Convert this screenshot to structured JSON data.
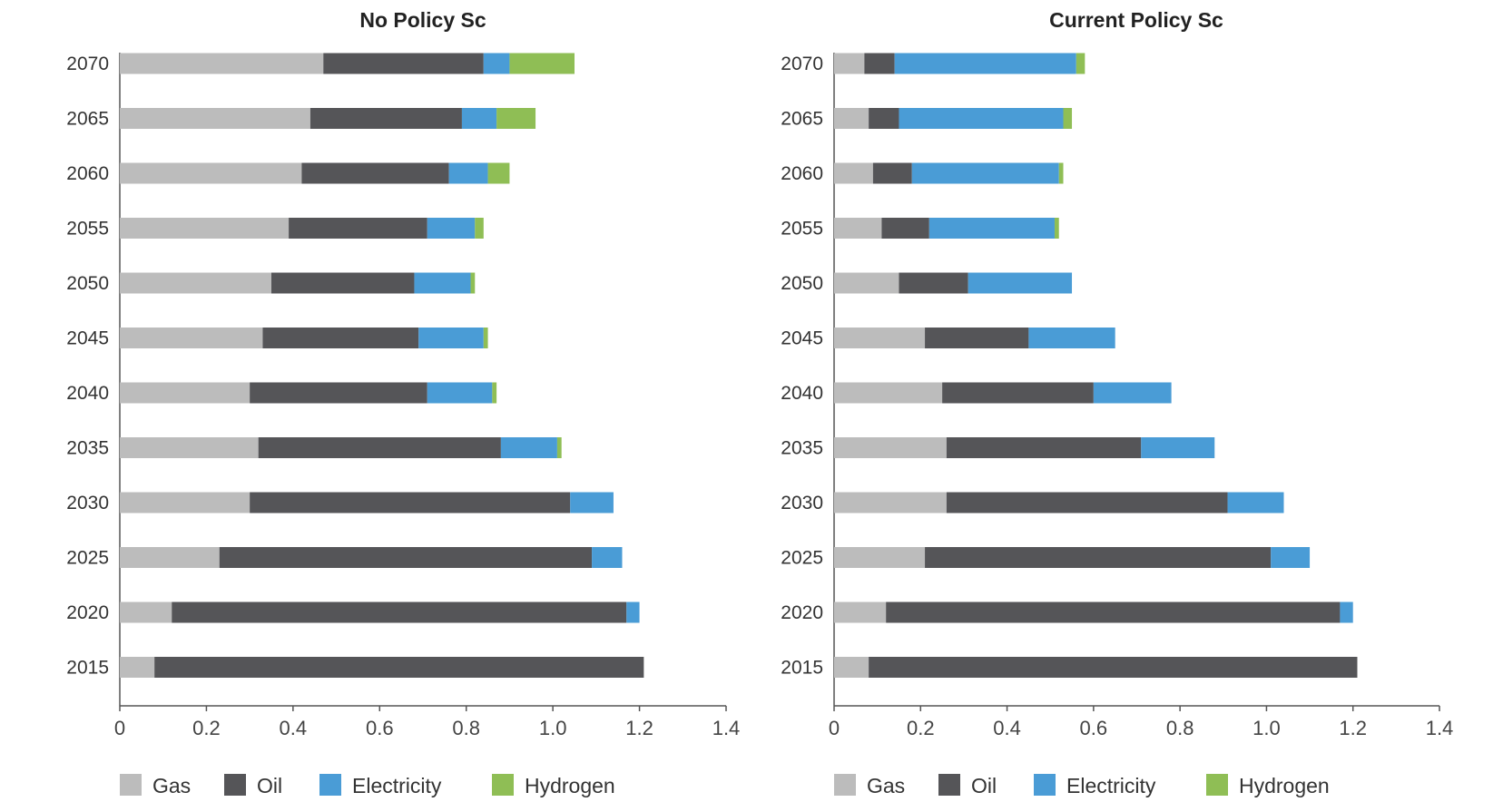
{
  "chart_data": [
    {
      "type": "bar",
      "orientation": "horizontal",
      "stacked": true,
      "title": "No Policy Sc",
      "xlim": [
        0,
        1.4
      ],
      "x_ticks": [
        "0",
        "0.2",
        "0.4",
        "0.6",
        "0.8",
        "1.0",
        "1.2",
        "1.4"
      ],
      "categories": [
        "2070",
        "2065",
        "2060",
        "2055",
        "2050",
        "2045",
        "2040",
        "2035",
        "2030",
        "2025",
        "2020",
        "2015"
      ],
      "series": [
        {
          "name": "Gas",
          "color": "#bcbcbc",
          "values": [
            0.47,
            0.44,
            0.42,
            0.39,
            0.35,
            0.33,
            0.3,
            0.32,
            0.3,
            0.23,
            0.12,
            0.08
          ]
        },
        {
          "name": "Oil",
          "color": "#555558",
          "values": [
            0.37,
            0.35,
            0.34,
            0.32,
            0.33,
            0.36,
            0.41,
            0.56,
            0.74,
            0.86,
            1.05,
            1.13
          ]
        },
        {
          "name": "Electricity",
          "color": "#4a9cd6",
          "values": [
            0.06,
            0.08,
            0.09,
            0.11,
            0.13,
            0.15,
            0.15,
            0.13,
            0.1,
            0.07,
            0.03,
            0.0
          ]
        },
        {
          "name": "Hydrogen",
          "color": "#8fbe55",
          "values": [
            0.15,
            0.09,
            0.05,
            0.02,
            0.01,
            0.01,
            0.01,
            0.01,
            0.0,
            0.0,
            0.0,
            0.0
          ]
        }
      ],
      "legend_position": "bottom"
    },
    {
      "type": "bar",
      "orientation": "horizontal",
      "stacked": true,
      "title": "Current Policy Sc",
      "xlim": [
        0,
        1.4
      ],
      "x_ticks": [
        "0",
        "0.2",
        "0.4",
        "0.6",
        "0.8",
        "1.0",
        "1.2",
        "1.4"
      ],
      "categories": [
        "2070",
        "2065",
        "2060",
        "2055",
        "2050",
        "2045",
        "2040",
        "2035",
        "2030",
        "2025",
        "2020",
        "2015"
      ],
      "series": [
        {
          "name": "Gas",
          "color": "#bcbcbc",
          "values": [
            0.07,
            0.08,
            0.09,
            0.11,
            0.15,
            0.21,
            0.25,
            0.26,
            0.26,
            0.21,
            0.12,
            0.08
          ]
        },
        {
          "name": "Oil",
          "color": "#555558",
          "values": [
            0.07,
            0.07,
            0.09,
            0.11,
            0.16,
            0.24,
            0.35,
            0.45,
            0.65,
            0.8,
            1.05,
            1.13
          ]
        },
        {
          "name": "Electricity",
          "color": "#4a9cd6",
          "values": [
            0.42,
            0.38,
            0.34,
            0.29,
            0.24,
            0.2,
            0.18,
            0.17,
            0.13,
            0.09,
            0.03,
            0.0
          ]
        },
        {
          "name": "Hydrogen",
          "color": "#8fbe55",
          "values": [
            0.02,
            0.02,
            0.01,
            0.01,
            0.0,
            0.0,
            0.0,
            0.0,
            0.0,
            0.0,
            0.0,
            0.0
          ]
        }
      ],
      "legend_position": "bottom"
    }
  ]
}
